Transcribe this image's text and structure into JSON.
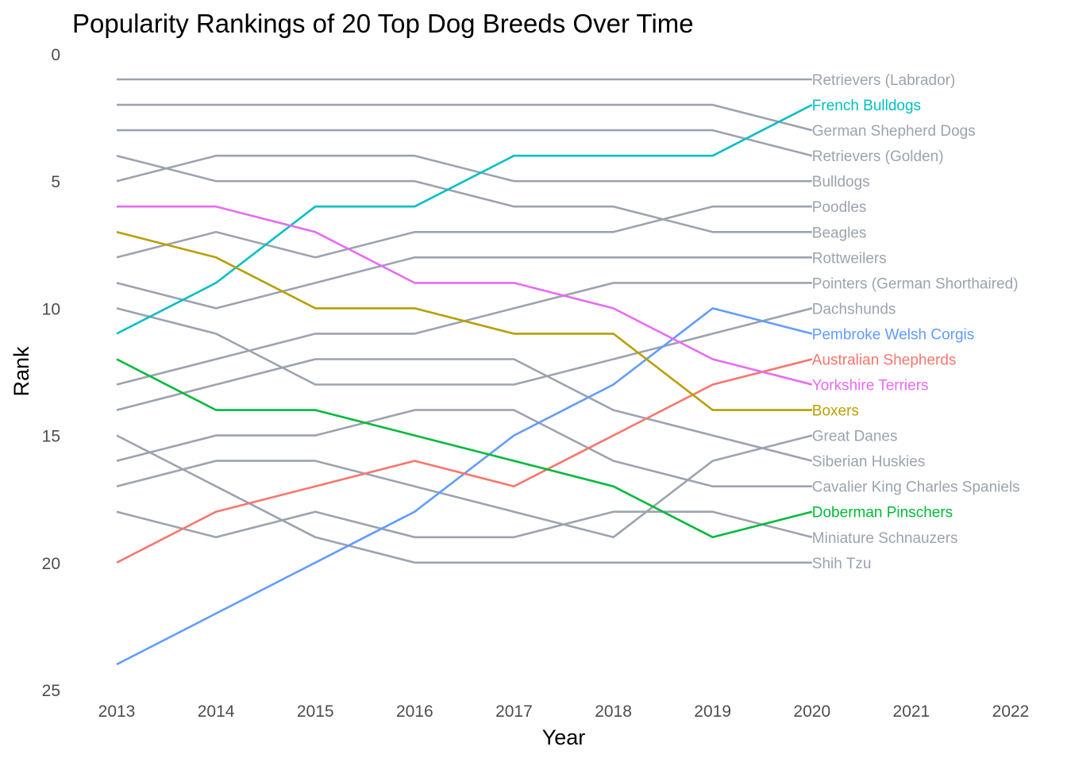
{
  "chart_data": {
    "type": "line",
    "title": "Popularity Rankings of 20 Top Dog Breeds Over Time",
    "xlabel": "Year",
    "ylabel": "Rank",
    "x": [
      2013,
      2014,
      2015,
      2016,
      2017,
      2018,
      2019,
      2020
    ],
    "xlim": [
      2013,
      2022
    ],
    "x_ticks": [
      "2013",
      "2014",
      "2015",
      "2016",
      "2017",
      "2018",
      "2019",
      "2020",
      "2021",
      "2022"
    ],
    "ylim": [
      0,
      25
    ],
    "y_reversed": true,
    "y_ticks": [
      "0",
      "5",
      "10",
      "15",
      "20",
      "25"
    ],
    "grid": false,
    "legend": "direct labels at line ends (right)",
    "series": [
      {
        "name": "Retrievers (Labrador)",
        "color": "#9ca3af",
        "values": [
          1,
          1,
          1,
          1,
          1,
          1,
          1,
          1
        ]
      },
      {
        "name": "French Bulldogs",
        "color": "#00bfc4",
        "values": [
          11,
          9,
          6,
          6,
          4,
          4,
          4,
          2
        ]
      },
      {
        "name": "German Shepherd Dogs",
        "color": "#9ca3af",
        "values": [
          2,
          2,
          2,
          2,
          2,
          2,
          2,
          3
        ]
      },
      {
        "name": "Retrievers (Golden)",
        "color": "#9ca3af",
        "values": [
          3,
          3,
          3,
          3,
          3,
          3,
          3,
          4
        ]
      },
      {
        "name": "Bulldogs",
        "color": "#9ca3af",
        "values": [
          5,
          4,
          4,
          4,
          5,
          5,
          5,
          5
        ]
      },
      {
        "name": "Poodles",
        "color": "#9ca3af",
        "values": [
          8,
          7,
          8,
          7,
          7,
          7,
          6,
          6
        ]
      },
      {
        "name": "Beagles",
        "color": "#9ca3af",
        "values": [
          4,
          5,
          5,
          5,
          6,
          6,
          7,
          7
        ]
      },
      {
        "name": "Rottweilers",
        "color": "#9ca3af",
        "values": [
          9,
          10,
          9,
          8,
          8,
          8,
          8,
          8
        ]
      },
      {
        "name": "Pointers (German Shorthaired)",
        "color": "#9ca3af",
        "values": [
          13,
          12,
          11,
          11,
          10,
          9,
          9,
          9
        ]
      },
      {
        "name": "Dachshunds",
        "color": "#9ca3af",
        "values": [
          10,
          11,
          13,
          13,
          13,
          12,
          11,
          10
        ]
      },
      {
        "name": "Pembroke Welsh Corgis",
        "color": "#619cff",
        "values": [
          24,
          22,
          20,
          18,
          15,
          13,
          10,
          11
        ]
      },
      {
        "name": "Australian Shepherds",
        "color": "#f8766d",
        "values": [
          20,
          18,
          17,
          16,
          17,
          15,
          13,
          12
        ]
      },
      {
        "name": "Yorkshire Terriers",
        "color": "#e76bf3",
        "values": [
          6,
          6,
          7,
          9,
          9,
          10,
          12,
          13
        ]
      },
      {
        "name": "Boxers",
        "color": "#b79f00",
        "values": [
          7,
          8,
          10,
          10,
          11,
          11,
          14,
          14
        ]
      },
      {
        "name": "Great Danes",
        "color": "#9ca3af",
        "values": [
          17,
          16,
          16,
          17,
          18,
          19,
          16,
          15
        ]
      },
      {
        "name": "Siberian Huskies",
        "color": "#9ca3af",
        "values": [
          14,
          13,
          12,
          12,
          12,
          14,
          15,
          16
        ]
      },
      {
        "name": "Cavalier King Charles Spaniels",
        "color": "#9ca3af",
        "values": [
          16,
          15,
          15,
          14,
          14,
          16,
          17,
          17
        ]
      },
      {
        "name": "Doberman Pinschers",
        "color": "#00ba38",
        "values": [
          12,
          14,
          14,
          15,
          16,
          17,
          19,
          18
        ]
      },
      {
        "name": "Miniature Schnauzers",
        "color": "#9ca3af",
        "values": [
          18,
          19,
          18,
          19,
          19,
          18,
          18,
          19
        ]
      },
      {
        "name": "Shih Tzu",
        "color": "#9ca3af",
        "values": [
          15,
          17,
          19,
          20,
          20,
          20,
          20,
          20
        ]
      }
    ]
  }
}
